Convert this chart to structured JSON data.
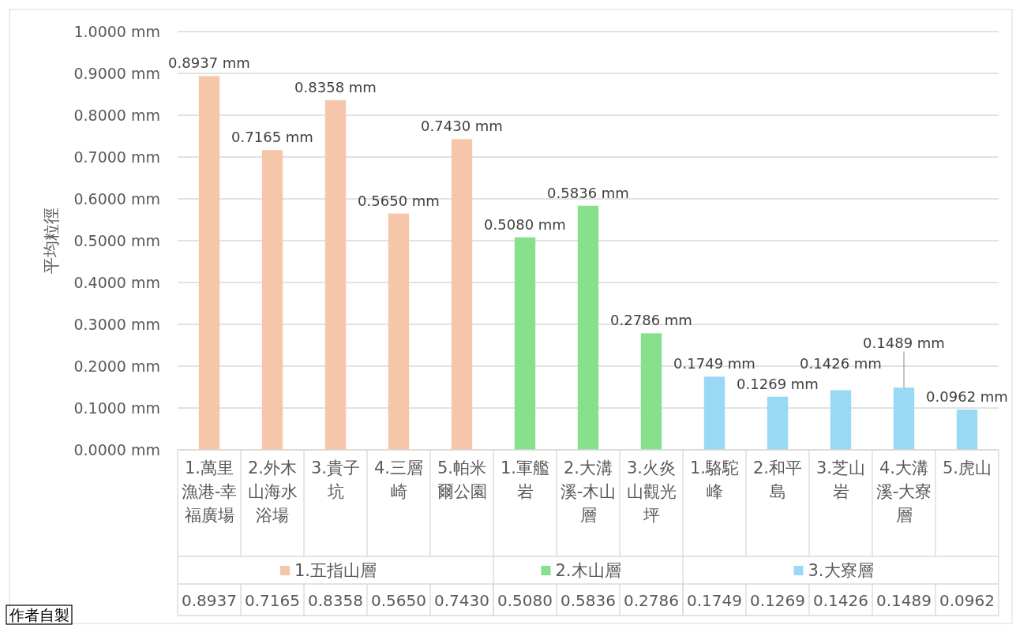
{
  "chart_data": {
    "type": "bar",
    "ylabel": "平均粒徑",
    "categories": [
      "1.萬里漁港-幸福廣場",
      "2.外木山海水浴場",
      "3.貴子坑",
      "4.三層崎",
      "5.帕米爾公園",
      "1.軍艦岩",
      "2.大溝溪-木山層",
      "3.火炎山觀光坪",
      "1.駱駝峰",
      "2.和平島",
      "3.芝山岩",
      "4.大溝溪-大寮層",
      "5.虎山"
    ],
    "series": [
      {
        "name": "1.五指山層",
        "color": "#f5c6aa",
        "values": [
          0.8937,
          0.7165,
          0.8358,
          0.565,
          0.743,
          null,
          null,
          null,
          null,
          null,
          null,
          null,
          null
        ],
        "value_labels": [
          "0.8937 mm",
          "0.7165 mm",
          "0.8358 mm",
          "0.5650 mm",
          "0.7430 mm",
          null,
          null,
          null,
          null,
          null,
          null,
          null,
          null
        ]
      },
      {
        "name": "2.木山層",
        "color": "#86e08c",
        "values": [
          null,
          null,
          null,
          null,
          null,
          0.508,
          0.5836,
          0.2786,
          null,
          null,
          null,
          null,
          null
        ],
        "value_labels": [
          null,
          null,
          null,
          null,
          null,
          "0.5080 mm",
          "0.5836 mm",
          "0.2786 mm",
          null,
          null,
          null,
          null,
          null
        ]
      },
      {
        "name": "3.大寮層",
        "color": "#99d9f5",
        "values": [
          null,
          null,
          null,
          null,
          null,
          null,
          null,
          null,
          0.1749,
          0.1269,
          0.1426,
          0.1489,
          0.0962
        ],
        "value_labels": [
          null,
          null,
          null,
          null,
          null,
          null,
          null,
          null,
          "0.1749 mm",
          "0.1269 mm",
          "0.1426 mm",
          "0.1489 mm",
          "0.0962 mm"
        ]
      }
    ],
    "ylim": [
      0,
      1
    ],
    "yticks": [
      {
        "value": 0,
        "label": "0.0000 mm"
      },
      {
        "value": 0.1,
        "label": "0.1000 mm"
      },
      {
        "value": 0.2,
        "label": "0.2000 mm"
      },
      {
        "value": 0.3,
        "label": "0.3000 mm"
      },
      {
        "value": 0.4,
        "label": "0.4000 mm"
      },
      {
        "value": 0.5,
        "label": "0.5000 mm"
      },
      {
        "value": 0.6,
        "label": "0.6000 mm"
      },
      {
        "value": 0.7,
        "label": "0.7000 mm"
      },
      {
        "value": 0.8,
        "label": "0.8000 mm"
      },
      {
        "value": 0.9,
        "label": "0.9000 mm"
      },
      {
        "value": 1,
        "label": "1.0000 mm"
      }
    ],
    "grid": "y",
    "legend": "bottom",
    "data_labels": true,
    "annotations": [
      "作者自製",
      "0.8937",
      "0.7165",
      "0.8358",
      "0.5650",
      "0.7430",
      "0.5080",
      "0.5836",
      "0.2786",
      "0.1749",
      "0.1269",
      "0.1426",
      "0.1489",
      "0.0962"
    ]
  }
}
